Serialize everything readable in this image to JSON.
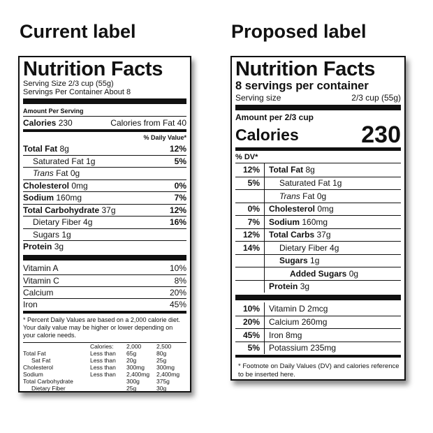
{
  "current": {
    "heading": "Current label",
    "title": "Nutrition Facts",
    "serving_size": "Serving Size 2/3 cup (55g)",
    "servings": "Servings Per Container About 8",
    "amount_per_serving": "Amount Per Serving",
    "calories": {
      "label": "Calories",
      "value": "230"
    },
    "calories_fat": "Calories from Fat 40",
    "dv_header": "% Daily Value*",
    "nutrients": [
      {
        "name": "Total Fat",
        "amount": "8g",
        "dv": "12%",
        "bold": true,
        "indent": 0
      },
      {
        "name": "Saturated Fat",
        "amount": "1g",
        "dv": "5%",
        "bold": false,
        "indent": 1
      },
      {
        "name_italic": "Trans",
        "name": "Fat",
        "amount": "0g",
        "bold": false,
        "indent": 1
      },
      {
        "name": "Cholesterol",
        "amount": "0mg",
        "dv": "0%",
        "bold": true,
        "indent": 0
      },
      {
        "name": "Sodium",
        "amount": "160mg",
        "dv": "7%",
        "bold": true,
        "indent": 0
      },
      {
        "name": "Total Carbohydrate",
        "amount": "37g",
        "dv": "12%",
        "bold": true,
        "indent": 0
      },
      {
        "name": "Dietary Fiber",
        "amount": "4g",
        "dv": "16%",
        "bold": false,
        "indent": 1
      },
      {
        "name": "Sugars",
        "amount": "1g",
        "bold": false,
        "indent": 1
      },
      {
        "name": "Protein",
        "amount": "3g",
        "bold": true,
        "indent": 0
      }
    ],
    "vitamins": [
      {
        "name": "Vitamin A",
        "dv": "10%"
      },
      {
        "name": "Vitamin C",
        "dv": "8%"
      },
      {
        "name": "Calcium",
        "dv": "20%"
      },
      {
        "name": "Iron",
        "dv": "45%"
      }
    ],
    "footnote": "* Percent Daily Values are based on a 2,000 calorie diet. Your daily value may be higher or lower depending on your calorie needs.",
    "table": {
      "header": {
        "label": "Calories:",
        "cols": [
          "2,000",
          "2,500"
        ]
      },
      "rows": [
        {
          "name": "Total Fat",
          "qualifier": "Less than",
          "cols": [
            "65g",
            "80g"
          ],
          "indent": 0
        },
        {
          "name": "Sat Fat",
          "qualifier": "Less than",
          "cols": [
            "20g",
            "25g"
          ],
          "indent": 1
        },
        {
          "name": "Cholesterol",
          "qualifier": "Less than",
          "cols": [
            "300mg",
            "300mg"
          ],
          "indent": 0
        },
        {
          "name": "Sodium",
          "qualifier": "Less than",
          "cols": [
            "2,400mg",
            "2,400mg"
          ],
          "indent": 0
        },
        {
          "name": "Total Carbohydrate",
          "cols": [
            "300g",
            "375g"
          ],
          "indent": 0
        },
        {
          "name": "Dietary Fiber",
          "cols": [
            "25g",
            "30g"
          ],
          "indent": 1
        }
      ]
    }
  },
  "proposed": {
    "heading": "Proposed label",
    "title": "Nutrition Facts",
    "servings": "8 servings per container",
    "serving_size": {
      "label": "Serving size",
      "value": "2/3 cup (55g)"
    },
    "amount_per": "Amount per 2/3 cup",
    "calories": {
      "label": "Calories",
      "value": "230"
    },
    "dv_header": "% DV*",
    "nutrients": [
      {
        "dv": "12%",
        "name": "Total Fat",
        "amount": "8g",
        "bold": true,
        "indent": 0
      },
      {
        "dv": "5%",
        "name": "Saturated Fat",
        "amount": "1g",
        "bold": false,
        "indent": 1
      },
      {
        "name_italic": "Trans",
        "name": "Fat",
        "amount": "0g",
        "bold": false,
        "indent": 1
      },
      {
        "dv": "0%",
        "name": "Cholesterol",
        "amount": "0mg",
        "bold": true,
        "indent": 0
      },
      {
        "dv": "7%",
        "name": "Sodium",
        "amount": "160mg",
        "bold": true,
        "indent": 0
      },
      {
        "dv": "12%",
        "name": "Total Carbs",
        "amount": "37g",
        "bold": true,
        "indent": 0
      },
      {
        "dv": "14%",
        "name": "Dietary Fiber",
        "amount": "4g",
        "bold": false,
        "indent": 1
      },
      {
        "name": "Sugars",
        "amount": "1g",
        "bold": true,
        "indent": 1
      },
      {
        "name": "Added Sugars",
        "amount": "0g",
        "bold": true,
        "indent": 2
      },
      {
        "name": "Protein",
        "amount": "3g",
        "bold": true,
        "indent": 0
      }
    ],
    "vitamins": [
      {
        "dv": "10%",
        "name": "Vitamin D",
        "amount": "2mcg"
      },
      {
        "dv": "20%",
        "name": "Calcium",
        "amount": "260mg"
      },
      {
        "dv": "45%",
        "name": "Iron",
        "amount": "8mg"
      },
      {
        "dv": "5%",
        "name": "Potassium",
        "amount": "235mg"
      }
    ],
    "footnote": "* Footnote on Daily Values (DV) and calories reference to be inserted here."
  }
}
